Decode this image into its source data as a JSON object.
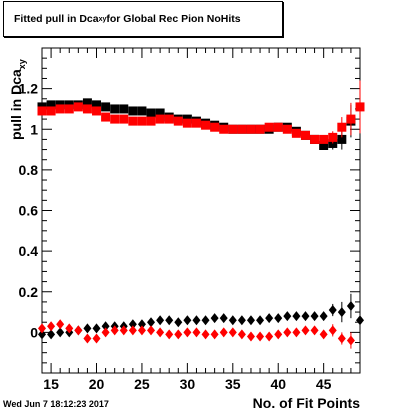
{
  "title_main": "Fitted pull in Dca",
  "title_sub": "xy",
  "title_rest": " for Global Rec Pion NoHits",
  "timestamp": "Wed Jun  7 18:12:23 2017",
  "chart_data": {
    "type": "scatter",
    "xlabel": "No. of Fit Points",
    "ylabel_main": "pull in Dca",
    "ylabel_sub": "xy",
    "xlim": [
      14,
      49
    ],
    "ylim": [
      -0.2,
      1.4
    ],
    "x_ticks": [
      15,
      20,
      25,
      30,
      35,
      40,
      45
    ],
    "y_ticks": [
      0,
      0.2,
      0.4,
      0.6,
      0.8,
      1,
      1.2
    ],
    "y_tick_labels": [
      "0",
      "0.2",
      "0.4",
      "0.6",
      "0.8",
      "1",
      "1.2"
    ],
    "series": [
      {
        "marker": "square",
        "color": "#000000",
        "x": [
          14,
          15,
          16,
          17,
          18,
          19,
          20,
          21,
          22,
          23,
          24,
          25,
          26,
          27,
          28,
          29,
          30,
          31,
          32,
          33,
          34,
          35,
          36,
          37,
          38,
          39,
          40,
          41,
          42,
          43,
          44,
          45,
          46,
          47,
          48
        ],
        "y": [
          1.11,
          1.12,
          1.12,
          1.12,
          1.12,
          1.13,
          1.12,
          1.11,
          1.1,
          1.1,
          1.09,
          1.09,
          1.08,
          1.08,
          1.06,
          1.05,
          1.05,
          1.04,
          1.03,
          1.02,
          1.01,
          1.0,
          1.0,
          1.0,
          1.0,
          1.0,
          1.01,
          1.01,
          0.99,
          0.97,
          0.95,
          0.92,
          0.93,
          0.95,
          1.04
        ],
        "err": [
          0.01,
          0.01,
          0.01,
          0.01,
          0.01,
          0.01,
          0.01,
          0.01,
          0.01,
          0.01,
          0.01,
          0.01,
          0.01,
          0.01,
          0.01,
          0.01,
          0.01,
          0.01,
          0.01,
          0.01,
          0.01,
          0.01,
          0.01,
          0.01,
          0.01,
          0.01,
          0.01,
          0.01,
          0.01,
          0.01,
          0.02,
          0.02,
          0.03,
          0.05,
          0.08
        ]
      },
      {
        "marker": "square",
        "color": "#ff0000",
        "x": [
          14,
          15,
          16,
          17,
          18,
          19,
          20,
          21,
          22,
          23,
          24,
          25,
          26,
          27,
          28,
          29,
          30,
          31,
          32,
          33,
          34,
          35,
          36,
          37,
          38,
          39,
          40,
          41,
          42,
          43,
          44,
          45,
          46,
          47,
          48,
          49
        ],
        "y": [
          1.09,
          1.09,
          1.1,
          1.1,
          1.11,
          1.1,
          1.09,
          1.06,
          1.05,
          1.05,
          1.04,
          1.04,
          1.04,
          1.05,
          1.05,
          1.04,
          1.03,
          1.03,
          1.02,
          1.01,
          1.0,
          1.0,
          1.0,
          1.0,
          1.0,
          1.01,
          1.01,
          1.0,
          0.98,
          0.97,
          0.95,
          0.95,
          0.96,
          1.01,
          1.05,
          1.11
        ],
        "err": [
          0.01,
          0.01,
          0.01,
          0.01,
          0.01,
          0.01,
          0.01,
          0.01,
          0.01,
          0.01,
          0.01,
          0.01,
          0.01,
          0.01,
          0.01,
          0.01,
          0.01,
          0.01,
          0.01,
          0.01,
          0.01,
          0.01,
          0.01,
          0.01,
          0.01,
          0.01,
          0.01,
          0.01,
          0.01,
          0.01,
          0.02,
          0.02,
          0.03,
          0.05,
          0.08,
          0.13
        ]
      },
      {
        "marker": "diamond",
        "color": "#000000",
        "x": [
          14,
          15,
          16,
          17,
          18,
          19,
          20,
          21,
          22,
          23,
          24,
          25,
          26,
          27,
          28,
          29,
          30,
          31,
          32,
          33,
          34,
          35,
          36,
          37,
          38,
          39,
          40,
          41,
          42,
          43,
          44,
          45,
          46,
          47,
          48,
          49
        ],
        "y": [
          -0.01,
          -0.01,
          0.0,
          0.0,
          0.01,
          0.02,
          0.02,
          0.03,
          0.03,
          0.03,
          0.04,
          0.04,
          0.05,
          0.06,
          0.06,
          0.05,
          0.06,
          0.06,
          0.06,
          0.07,
          0.07,
          0.06,
          0.06,
          0.06,
          0.06,
          0.07,
          0.07,
          0.08,
          0.08,
          0.08,
          0.08,
          0.08,
          0.11,
          0.1,
          0.13,
          0.06
        ],
        "err": [
          0.01,
          0.01,
          0.01,
          0.01,
          0.01,
          0.01,
          0.01,
          0.01,
          0.01,
          0.01,
          0.01,
          0.01,
          0.01,
          0.01,
          0.01,
          0.01,
          0.01,
          0.01,
          0.01,
          0.01,
          0.01,
          0.01,
          0.01,
          0.01,
          0.01,
          0.01,
          0.01,
          0.01,
          0.01,
          0.01,
          0.02,
          0.02,
          0.03,
          0.05,
          0.06,
          0.09
        ]
      },
      {
        "marker": "diamond",
        "color": "#ff0000",
        "x": [
          14,
          15,
          16,
          17,
          18,
          19,
          20,
          21,
          22,
          23,
          24,
          25,
          26,
          27,
          28,
          29,
          30,
          31,
          32,
          33,
          34,
          35,
          36,
          37,
          38,
          39,
          40,
          41,
          42,
          43,
          44,
          45,
          46,
          47,
          48
        ],
        "y": [
          0.02,
          0.03,
          0.04,
          0.02,
          0.01,
          -0.03,
          -0.03,
          0.0,
          0.01,
          0.01,
          0.01,
          0.01,
          0.01,
          0.0,
          -0.01,
          -0.01,
          0.0,
          0.0,
          -0.01,
          -0.01,
          0.0,
          0.0,
          -0.01,
          -0.02,
          -0.02,
          -0.02,
          -0.01,
          0.0,
          0.0,
          0.01,
          0.01,
          -0.01,
          0.01,
          -0.03,
          -0.04
        ],
        "err": [
          0.01,
          0.01,
          0.01,
          0.01,
          0.01,
          0.01,
          0.01,
          0.01,
          0.01,
          0.01,
          0.01,
          0.01,
          0.01,
          0.01,
          0.01,
          0.01,
          0.01,
          0.01,
          0.01,
          0.01,
          0.01,
          0.01,
          0.01,
          0.01,
          0.01,
          0.01,
          0.01,
          0.01,
          0.01,
          0.01,
          0.02,
          0.02,
          0.03,
          0.03,
          0.04
        ]
      }
    ]
  }
}
